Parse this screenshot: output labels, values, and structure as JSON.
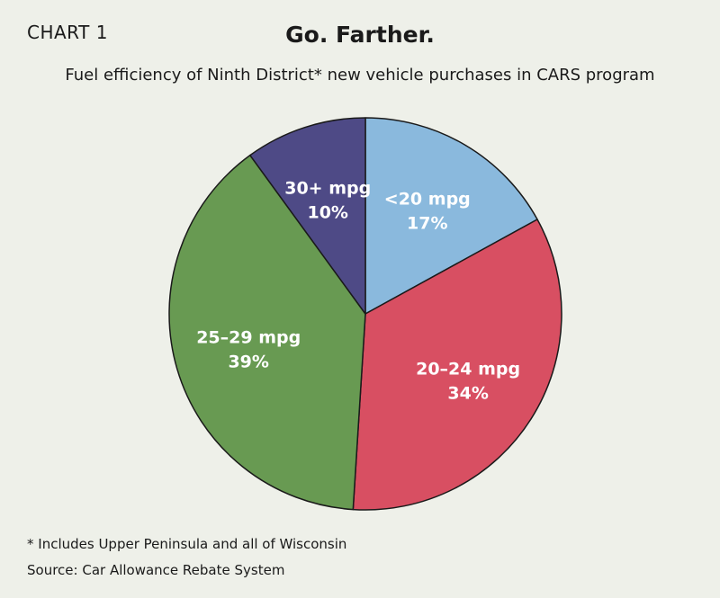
{
  "header": {
    "chart_label": "CHART 1",
    "title": "Go. Farther.",
    "subtitle": "Fuel efficiency of Ninth District* new vehicle purchases in CARS program"
  },
  "footer": {
    "footnote": "* Includes Upper Peninsula and all of Wisconsin",
    "source": "Source: Car Allowance Rebate System"
  },
  "chart_data": {
    "type": "pie",
    "title": "Go. Farther.",
    "subtitle": "Fuel efficiency of Ninth District* new vehicle purchases in CARS program",
    "slices": [
      {
        "label": "<20 mpg",
        "value": 17,
        "value_label": "17%",
        "color": "#8ab9dd"
      },
      {
        "label": "20–24 mpg",
        "value": 34,
        "value_label": "34%",
        "color": "#d84f62"
      },
      {
        "label": "25–29 mpg",
        "value": 39,
        "value_label": "39%",
        "color": "#689a52"
      },
      {
        "label": "30+ mpg",
        "value": 10,
        "value_label": "10%",
        "color": "#4e4a86"
      }
    ],
    "start": "top, clockwise",
    "legend": "none (labels inside slices)"
  }
}
